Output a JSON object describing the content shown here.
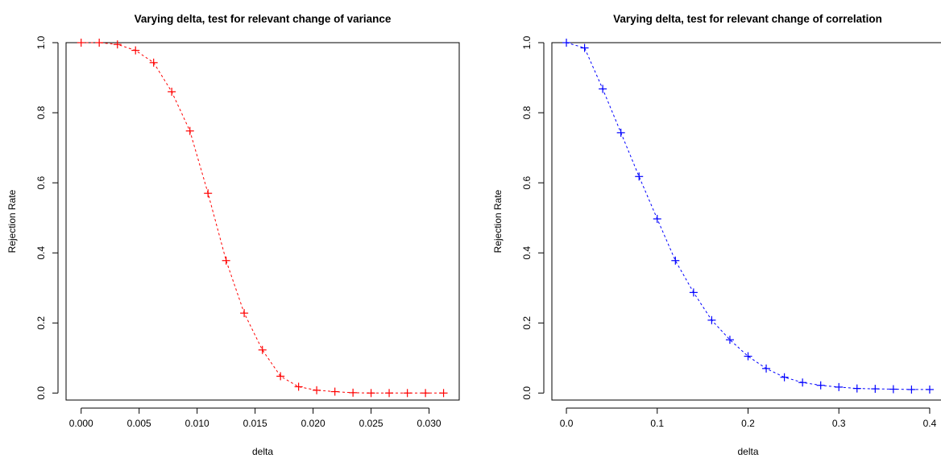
{
  "chart_data": [
    {
      "type": "line",
      "title": "Varying delta, test for relevant change of variance",
      "xlabel": "delta",
      "ylabel": "Rejection Rate",
      "xlim": [
        -0.0013,
        0.0326
      ],
      "ylim": [
        -0.02,
        1.0
      ],
      "x_ticks": [
        0.0,
        0.005,
        0.01,
        0.015,
        0.02,
        0.025,
        0.03
      ],
      "x_tick_labels": [
        "0.000",
        "0.005",
        "0.010",
        "0.015",
        "0.020",
        "0.025",
        "0.030"
      ],
      "y_ticks": [
        0.0,
        0.2,
        0.4,
        0.6,
        0.8,
        1.0
      ],
      "y_tick_labels": [
        "0.0",
        "0.2",
        "0.4",
        "0.6",
        "0.8",
        "1.0"
      ],
      "series": [
        {
          "color": "#ff0000",
          "line_style": "dashed",
          "marker": "plus",
          "x": [
            0.0,
            0.00156,
            0.00313,
            0.00469,
            0.00625,
            0.00781,
            0.00938,
            0.01094,
            0.0125,
            0.01406,
            0.01563,
            0.01719,
            0.01875,
            0.02031,
            0.02188,
            0.02344,
            0.025,
            0.02656,
            0.02813,
            0.02969,
            0.03125
          ],
          "y": [
            1.0,
            1.0,
            0.995,
            0.978,
            0.943,
            0.86,
            0.748,
            0.57,
            0.378,
            0.228,
            0.123,
            0.048,
            0.018,
            0.008,
            0.004,
            0.001,
            0.0,
            0.0,
            0.0,
            0.0,
            0.0
          ]
        }
      ]
    },
    {
      "type": "line",
      "title": "Varying delta, test for relevant change of correlation",
      "xlabel": "delta",
      "ylabel": "Rejection Rate",
      "xlim": [
        -0.016,
        0.416
      ],
      "ylim": [
        -0.02,
        1.0
      ],
      "x_ticks": [
        0.0,
        0.1,
        0.2,
        0.3,
        0.4
      ],
      "x_tick_labels": [
        "0.0",
        "0.1",
        "0.2",
        "0.3",
        "0.4"
      ],
      "y_ticks": [
        0.0,
        0.2,
        0.4,
        0.6,
        0.8,
        1.0
      ],
      "y_tick_labels": [
        "0.0",
        "0.2",
        "0.4",
        "0.6",
        "0.8",
        "1.0"
      ],
      "series": [
        {
          "color": "#0000ff",
          "line_style": "dashed",
          "marker": "plus",
          "x": [
            0.0,
            0.02,
            0.04,
            0.06,
            0.08,
            0.1,
            0.12,
            0.14,
            0.16,
            0.18,
            0.2,
            0.22,
            0.24,
            0.26,
            0.28,
            0.3,
            0.32,
            0.34,
            0.36,
            0.38,
            0.4
          ],
          "y": [
            1.0,
            0.985,
            0.868,
            0.743,
            0.618,
            0.497,
            0.378,
            0.287,
            0.208,
            0.152,
            0.105,
            0.07,
            0.045,
            0.03,
            0.022,
            0.017,
            0.013,
            0.012,
            0.011,
            0.01,
            0.01
          ]
        }
      ]
    }
  ]
}
